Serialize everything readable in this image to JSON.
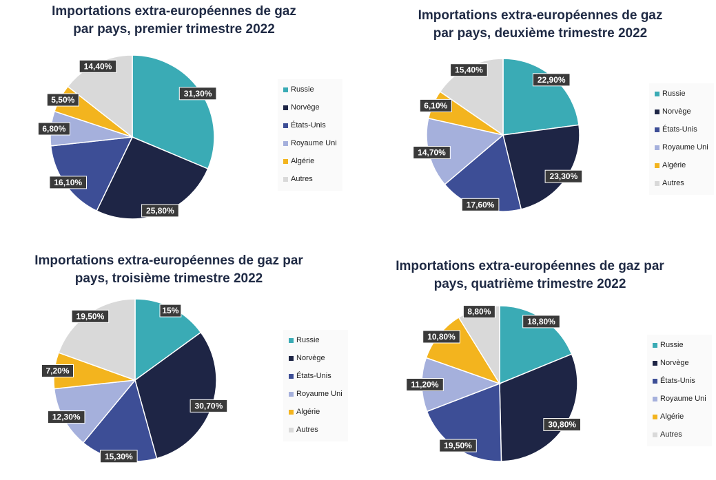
{
  "chart_data": [
    {
      "type": "pie",
      "title": "Importations extra-européennes de gaz\npar pays, premier trimestre 2022",
      "categories": [
        "Russie",
        "Norvège",
        "États-Unis",
        "Royaume Uni",
        "Algérie",
        "Autres"
      ],
      "values": [
        31.3,
        25.8,
        16.1,
        6.8,
        5.5,
        14.4
      ],
      "data_labels": [
        "31,30%",
        "25,80%",
        "16,10%",
        "6,80%",
        "5,50%",
        "14,40%"
      ],
      "legend": "right"
    },
    {
      "type": "pie",
      "title": "Importations extra-européennes de gaz\npar pays, deuxième trimestre 2022",
      "categories": [
        "Russie",
        "Norvège",
        "États-Unis",
        "Royaume Uni",
        "Algérie",
        "Autres"
      ],
      "values": [
        22.9,
        23.3,
        17.6,
        14.7,
        6.1,
        15.4
      ],
      "data_labels": [
        "22,90%",
        "23,30%",
        "17,60%",
        "14,70%",
        "6,10%",
        "15,40%"
      ],
      "legend": "right"
    },
    {
      "type": "pie",
      "title": "Importations extra-européennes de gaz par\npays, troisième trimestre 2022",
      "categories": [
        "Russie",
        "Norvège",
        "États-Unis",
        "Royaume Uni",
        "Algérie",
        "Autres"
      ],
      "values": [
        15,
        30.7,
        15.3,
        12.3,
        7.2,
        19.5
      ],
      "data_labels": [
        "15%",
        "30,70%",
        "15,30%",
        "12,30%",
        "7,20%",
        "19,50%"
      ],
      "legend": "right"
    },
    {
      "type": "pie",
      "title": "Importations extra-européennes de gaz par\npays, quatrième trimestre 2022",
      "categories": [
        "Russie",
        "Norvège",
        "États-Unis",
        "Royaume Uni",
        "Algérie",
        "Autres"
      ],
      "values": [
        18.8,
        30.8,
        19.5,
        11.2,
        10.8,
        8.8
      ],
      "data_labels": [
        "18,80%",
        "30,80%",
        "19,50%",
        "11,20%",
        "10,80%",
        "8,80%"
      ],
      "legend": "right"
    }
  ],
  "colors": {
    "Russie": "#3aabb5",
    "Norvège": "#1e2545",
    "États-Unis": "#3d4e96",
    "Royaume Uni": "#a5b0dc",
    "Algérie": "#f3b41e",
    "Autres": "#d9d9d9",
    "label_box": "#3a3a3a",
    "label_text": "#ffffff"
  }
}
